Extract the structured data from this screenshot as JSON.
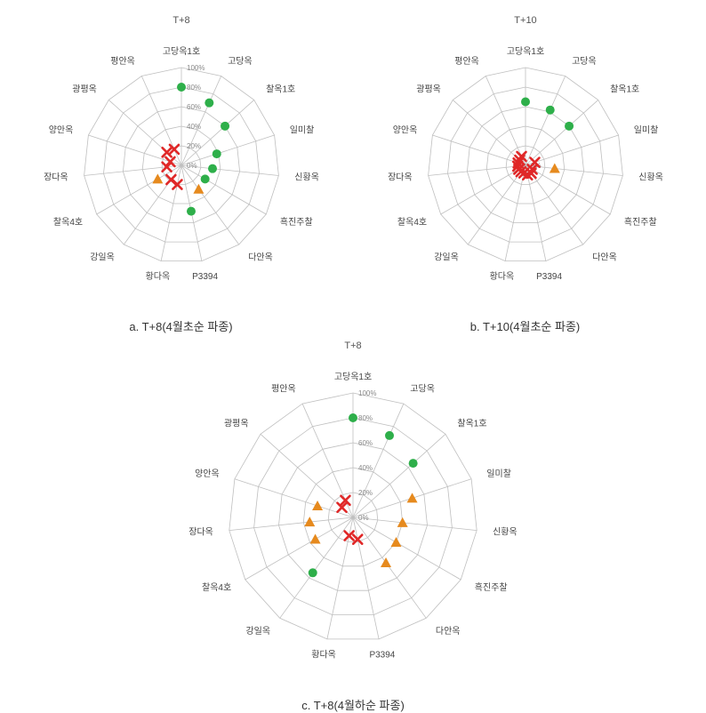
{
  "colors": {
    "grid": "#bfbfbf",
    "background": "#ffffff",
    "green": "#2eaf4a",
    "orange": "#e68a1e",
    "red": "#e02828",
    "label": "#444444",
    "tick": "#888888"
  },
  "categories": [
    "고당옥1호",
    "고당옥",
    "찰옥1호",
    "일미찰",
    "신황옥",
    "흑진주찰",
    "다안옥",
    "P3394",
    "황다옥",
    "강일옥",
    "찰옥4호",
    "장다옥",
    "양안옥",
    "광평옥",
    "평안옥"
  ],
  "charts": {
    "a": {
      "title": "T+8",
      "caption": "a. T+8(4월초순 파종)",
      "ticks": [
        0,
        20,
        40,
        60,
        80,
        100
      ],
      "tick_format": "percent",
      "rmax": 100,
      "size": 340,
      "radius": 110,
      "points": [
        {
          "cat": "고당옥1호",
          "r": 80,
          "marker": "green"
        },
        {
          "cat": "고당옥",
          "r": 70,
          "marker": "green"
        },
        {
          "cat": "찰옥1호",
          "r": 60,
          "marker": "green"
        },
        {
          "cat": "일미찰",
          "r": 38,
          "marker": "green"
        },
        {
          "cat": "신황옥",
          "r": 32,
          "marker": "green"
        },
        {
          "cat": "흑진주찰",
          "r": 28,
          "marker": "green"
        },
        {
          "cat": "다안옥",
          "r": 30,
          "marker": "orange"
        },
        {
          "cat": "P3394",
          "r": 48,
          "marker": "green"
        },
        {
          "cat": "황다옥",
          "r": 20,
          "marker": "red"
        },
        {
          "cat": "강일옥",
          "r": 18,
          "marker": "red"
        },
        {
          "cat": "찰옥4호",
          "r": 28,
          "marker": "orange"
        },
        {
          "cat": "장다옥",
          "r": 15,
          "marker": "red"
        },
        {
          "cat": "양안옥",
          "r": 12,
          "marker": "red"
        },
        {
          "cat": "광평옥",
          "r": 20,
          "marker": "red"
        },
        {
          "cat": "평안옥",
          "r": 18,
          "marker": "red"
        }
      ]
    },
    "b": {
      "title": "T+10",
      "caption": "b. T+10(4월초순 파종)",
      "ticks": [
        0
      ],
      "tick_format": "percent",
      "rmax": 100,
      "size": 340,
      "radius": 110,
      "points": [
        {
          "cat": "고당옥1호",
          "r": 65,
          "marker": "green"
        },
        {
          "cat": "고당옥",
          "r": 62,
          "marker": "green"
        },
        {
          "cat": "찰옥1호",
          "r": 60,
          "marker": "green"
        },
        {
          "cat": "일미찰",
          "r": 10,
          "marker": "red"
        },
        {
          "cat": "신황옥",
          "r": 30,
          "marker": "orange"
        },
        {
          "cat": "흑진주찰",
          "r": 8,
          "marker": "red"
        },
        {
          "cat": "다안옥",
          "r": 10,
          "marker": "red"
        },
        {
          "cat": "P3394",
          "r": 10,
          "marker": "red"
        },
        {
          "cat": "황다옥",
          "r": 8,
          "marker": "red"
        },
        {
          "cat": "강일옥",
          "r": 8,
          "marker": "red"
        },
        {
          "cat": "찰옥4호",
          "r": 8,
          "marker": "red"
        },
        {
          "cat": "장다옥",
          "r": 8,
          "marker": "red"
        },
        {
          "cat": "양안옥",
          "r": 8,
          "marker": "red"
        },
        {
          "cat": "광평옥",
          "r": 8,
          "marker": "red"
        },
        {
          "cat": "평안옥",
          "r": 10,
          "marker": "red"
        }
      ]
    },
    "c": {
      "title": "T+8",
      "caption": "c. T+8(4월하순 파종)",
      "ticks": [
        0,
        20,
        40,
        60,
        80,
        100
      ],
      "tick_format": "percent",
      "rmax": 100,
      "size": 400,
      "radius": 140,
      "points": [
        {
          "cat": "고당옥1호",
          "r": 80,
          "marker": "green"
        },
        {
          "cat": "고당옥",
          "r": 72,
          "marker": "green"
        },
        {
          "cat": "찰옥1호",
          "r": 65,
          "marker": "green"
        },
        {
          "cat": "일미찰",
          "r": 50,
          "marker": "orange"
        },
        {
          "cat": "신황옥",
          "r": 40,
          "marker": "orange"
        },
        {
          "cat": "흑진주찰",
          "r": 40,
          "marker": "orange"
        },
        {
          "cat": "다안옥",
          "r": 45,
          "marker": "orange"
        },
        {
          "cat": "P3394",
          "r": 18,
          "marker": "red"
        },
        {
          "cat": "황다옥",
          "r": 15,
          "marker": "red"
        },
        {
          "cat": "강일옥",
          "r": 55,
          "marker": "green"
        },
        {
          "cat": "찰옥4호",
          "r": 35,
          "marker": "orange"
        },
        {
          "cat": "장다옥",
          "r": 35,
          "marker": "orange"
        },
        {
          "cat": "양안옥",
          "r": 30,
          "marker": "orange"
        },
        {
          "cat": "광평옥",
          "r": 12,
          "marker": "red"
        },
        {
          "cat": "평안옥",
          "r": 15,
          "marker": "red"
        }
      ]
    }
  }
}
